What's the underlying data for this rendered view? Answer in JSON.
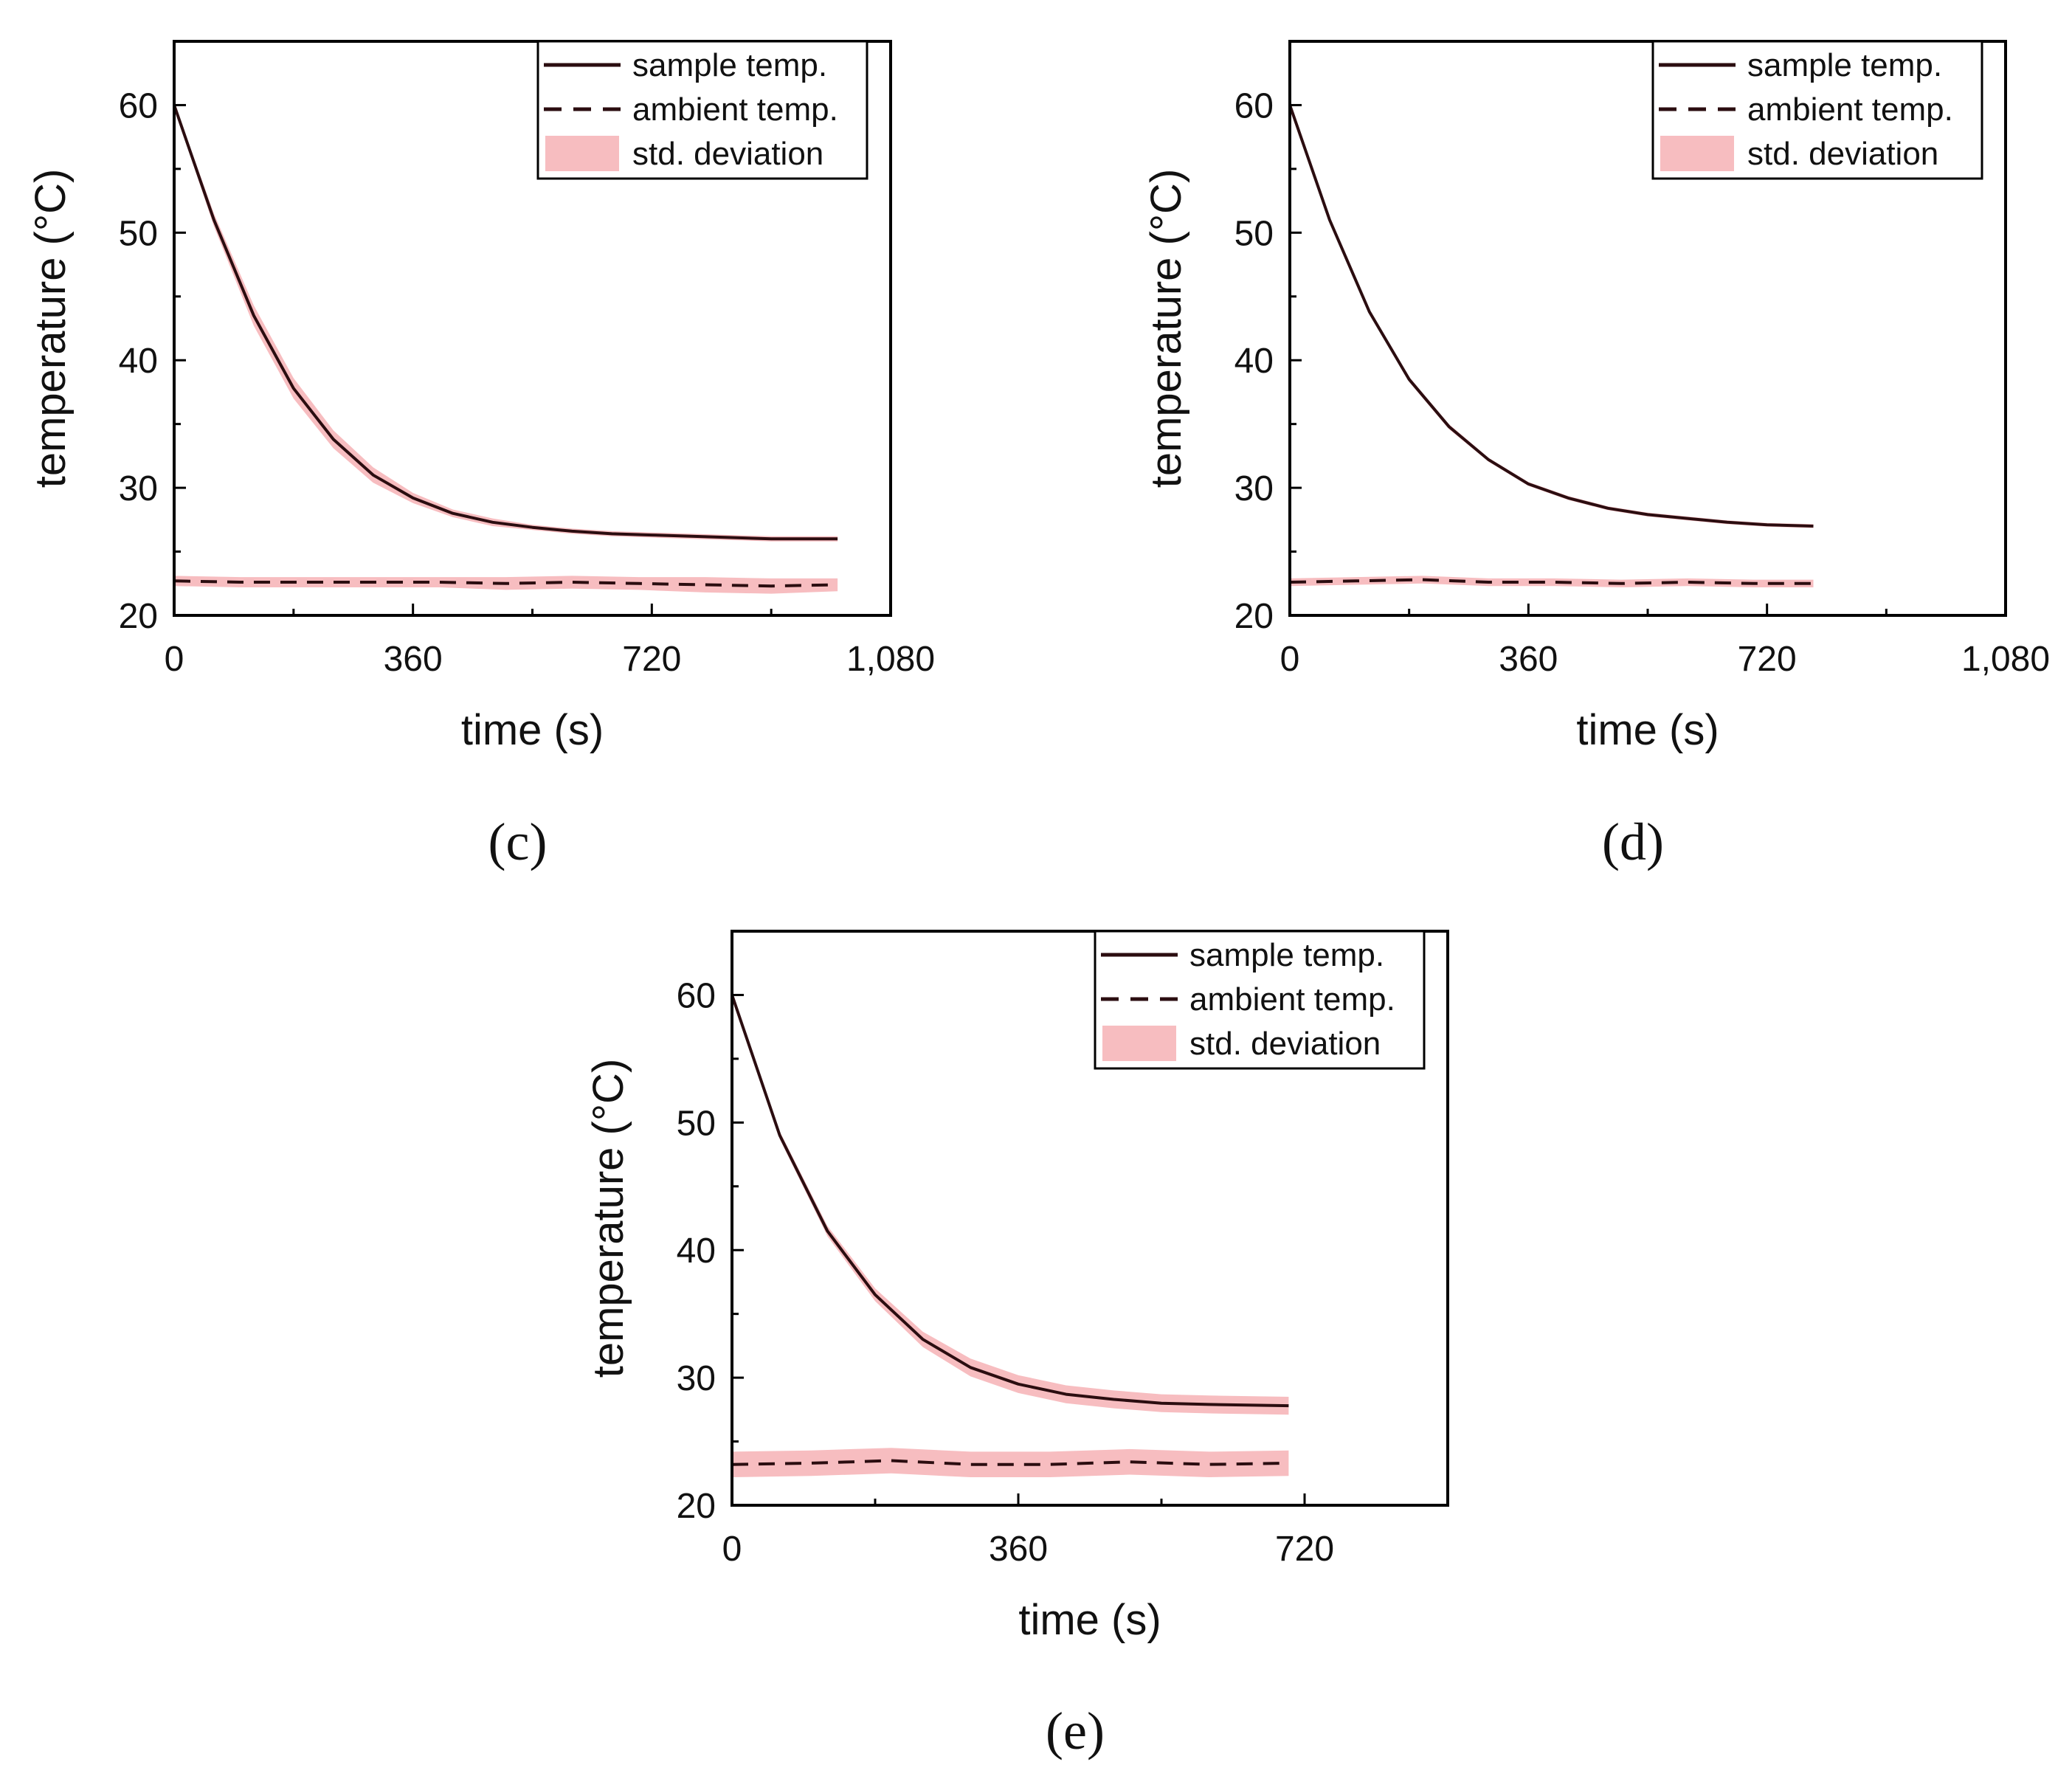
{
  "colors": {
    "sample_line": "#2b0d10",
    "ambient_line": "#2b0d10",
    "std_band": "#f4a7ab",
    "axis": "#000000"
  },
  "legend": {
    "sample": "sample temp.",
    "ambient": "ambient temp.",
    "std": "std. deviation"
  },
  "chart_data": [
    {
      "panel": "c",
      "panel_label": "(c)",
      "type": "line",
      "xlabel": "time (s)",
      "ylabel": "temperature (°C)",
      "xlim": [
        0,
        1080
      ],
      "ylim": [
        20,
        65
      ],
      "xticks": [
        0,
        360,
        720,
        1080
      ],
      "xtick_labels": [
        "0",
        "360",
        "720",
        "1,080"
      ],
      "yticks": [
        20,
        30,
        40,
        50,
        60
      ],
      "ytick_labels": [
        "20",
        "30",
        "40",
        "50",
        "60"
      ],
      "legend_position": "top-right",
      "series": [
        {
          "name": "sample temp.",
          "style": "solid",
          "x": [
            0,
            60,
            120,
            180,
            240,
            300,
            360,
            420,
            480,
            540,
            600,
            660,
            720,
            780,
            840,
            900,
            1000
          ],
          "y": [
            60.0,
            51.0,
            43.5,
            37.8,
            33.8,
            31.0,
            29.2,
            28.0,
            27.3,
            26.9,
            26.6,
            26.4,
            26.3,
            26.2,
            26.1,
            26.0,
            26.0
          ],
          "std": [
            0.2,
            0.5,
            0.8,
            0.8,
            0.7,
            0.6,
            0.4,
            0.3,
            0.3,
            0.2,
            0.2,
            0.2,
            0.2,
            0.2,
            0.2,
            0.2,
            0.2
          ]
        },
        {
          "name": "ambient temp.",
          "style": "dashed",
          "x": [
            0,
            100,
            200,
            300,
            400,
            500,
            600,
            700,
            800,
            900,
            1000
          ],
          "y": [
            22.7,
            22.6,
            22.6,
            22.6,
            22.6,
            22.5,
            22.6,
            22.5,
            22.4,
            22.3,
            22.4
          ],
          "std": [
            0.4,
            0.4,
            0.4,
            0.4,
            0.4,
            0.5,
            0.5,
            0.5,
            0.6,
            0.6,
            0.5
          ]
        }
      ]
    },
    {
      "panel": "d",
      "panel_label": "(d)",
      "type": "line",
      "xlabel": "time (s)",
      "ylabel": "temperature (°C)",
      "xlim": [
        0,
        1080
      ],
      "ylim": [
        20,
        65
      ],
      "xticks": [
        0,
        360,
        720,
        1080
      ],
      "xtick_labels": [
        "0",
        "360",
        "720",
        "1,080"
      ],
      "yticks": [
        20,
        30,
        40,
        50,
        60
      ],
      "ytick_labels": [
        "20",
        "30",
        "40",
        "50",
        "60"
      ],
      "legend_position": "top-right",
      "series": [
        {
          "name": "sample temp.",
          "style": "solid",
          "x": [
            0,
            60,
            120,
            180,
            240,
            300,
            360,
            420,
            480,
            540,
            600,
            660,
            720,
            790
          ],
          "y": [
            60.0,
            51.0,
            43.8,
            38.5,
            34.8,
            32.2,
            30.3,
            29.2,
            28.4,
            27.9,
            27.6,
            27.3,
            27.1,
            27.0
          ],
          "std": [
            0.15,
            0.2,
            0.2,
            0.2,
            0.2,
            0.15,
            0.15,
            0.15,
            0.15,
            0.15,
            0.15,
            0.15,
            0.15,
            0.15
          ]
        },
        {
          "name": "ambient temp.",
          "style": "dashed",
          "x": [
            0,
            100,
            200,
            300,
            400,
            500,
            600,
            700,
            790
          ],
          "y": [
            22.6,
            22.7,
            22.8,
            22.6,
            22.6,
            22.5,
            22.6,
            22.5,
            22.5
          ],
          "std": [
            0.3,
            0.3,
            0.3,
            0.3,
            0.3,
            0.3,
            0.3,
            0.3,
            0.3
          ]
        }
      ]
    },
    {
      "panel": "e",
      "panel_label": "(e)",
      "type": "line",
      "xlabel": "time (s)",
      "ylabel": "temperature (°C)",
      "xlim": [
        0,
        900
      ],
      "ylim": [
        20,
        65
      ],
      "xticks": [
        0,
        360,
        720
      ],
      "xtick_labels": [
        "0",
        "360",
        "720"
      ],
      "yticks": [
        20,
        30,
        40,
        50,
        60
      ],
      "ytick_labels": [
        "20",
        "30",
        "40",
        "50",
        "60"
      ],
      "legend_position": "top-right",
      "series": [
        {
          "name": "sample temp.",
          "style": "solid",
          "x": [
            0,
            60,
            120,
            180,
            240,
            300,
            360,
            420,
            480,
            540,
            600,
            700
          ],
          "y": [
            60.0,
            49.0,
            41.5,
            36.5,
            33.0,
            30.8,
            29.5,
            28.7,
            28.3,
            28.0,
            27.9,
            27.8
          ],
          "std": [
            0.2,
            0.3,
            0.4,
            0.5,
            0.6,
            0.7,
            0.7,
            0.7,
            0.7,
            0.7,
            0.7,
            0.7
          ]
        },
        {
          "name": "ambient temp.",
          "style": "dashed",
          "x": [
            0,
            100,
            200,
            300,
            400,
            500,
            600,
            700
          ],
          "y": [
            23.2,
            23.3,
            23.5,
            23.2,
            23.2,
            23.4,
            23.2,
            23.3
          ],
          "std": [
            1.0,
            1.0,
            1.0,
            1.0,
            1.0,
            1.0,
            1.0,
            1.0
          ]
        }
      ]
    }
  ]
}
